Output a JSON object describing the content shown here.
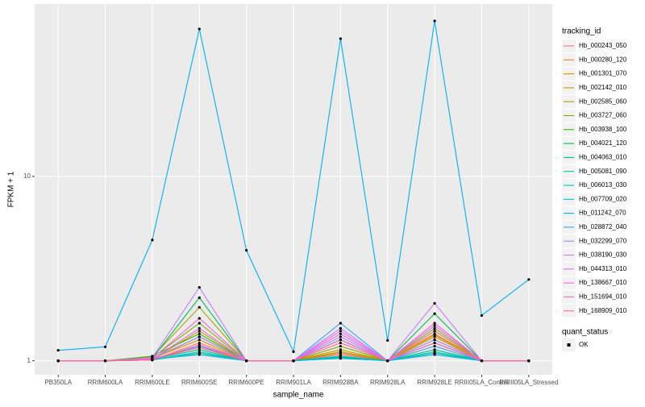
{
  "chart_data": {
    "type": "line",
    "x_label": "sample_name",
    "y_label": "FPKM + 1",
    "categories": [
      "PB350LA",
      "RRIM600LA",
      "RRIM600LE",
      "RRIM600SE",
      "RRIM600PE",
      "RRIM901LA",
      "RRIM928BA",
      "RRIM928LA",
      "RRIM928LE",
      "RRIII05LA_Control",
      "RRIII05LA_Stressed"
    ],
    "ylog": true,
    "ylim": [
      0.84,
      86
    ],
    "yticks": [
      1,
      10
    ],
    "grid": true,
    "legend_position": "right",
    "legend_title": "tracking_id",
    "shape_legend": {
      "title": "quant_status",
      "items": [
        "OK"
      ]
    },
    "series": [
      {
        "name": "Hb_000243_050",
        "color": "#F8766D",
        "values": [
          1,
          1,
          1.01,
          1.25,
          1,
          1,
          1.08,
          1,
          1.3,
          1,
          1
        ]
      },
      {
        "name": "Hb_000280_120",
        "color": "#EA8331",
        "values": [
          1,
          1,
          1.02,
          1.35,
          1,
          1,
          1.1,
          1,
          1.38,
          1,
          1
        ]
      },
      {
        "name": "Hb_001301_070",
        "color": "#D89000",
        "values": [
          1,
          1,
          1.03,
          1.3,
          1,
          1,
          1.15,
          1,
          1.4,
          1,
          1
        ]
      },
      {
        "name": "Hb_002142_010",
        "color": "#C09B00",
        "values": [
          1,
          1,
          1.02,
          1.45,
          1,
          1,
          1.12,
          1,
          1.35,
          1,
          1
        ]
      },
      {
        "name": "Hb_002585_060",
        "color": "#A3A500",
        "values": [
          1,
          1,
          1.05,
          1.95,
          1,
          1,
          1.12,
          1,
          1.45,
          1,
          1
        ]
      },
      {
        "name": "Hb_003727_060",
        "color": "#7CAE00",
        "values": [
          1,
          1,
          1.04,
          1.6,
          1,
          1,
          1.2,
          1,
          1.5,
          1,
          1
        ]
      },
      {
        "name": "Hb_003938_100",
        "color": "#39B600",
        "values": [
          1,
          1,
          1.06,
          1.4,
          1,
          1,
          1.05,
          1,
          1.25,
          1,
          1
        ]
      },
      {
        "name": "Hb_004021_120",
        "color": "#00BB4E",
        "values": [
          1,
          1,
          1.03,
          2.2,
          1,
          1,
          1.3,
          1,
          1.8,
          1,
          1
        ]
      },
      {
        "name": "Hb_004063_010",
        "color": "#00BF7D",
        "values": [
          1,
          1,
          1.02,
          1.15,
          1,
          1,
          1.05,
          1,
          1.15,
          1,
          1
        ]
      },
      {
        "name": "Hb_005081_090",
        "color": "#00C1A3",
        "values": [
          1,
          1,
          1.01,
          1.1,
          1,
          1,
          1.04,
          1,
          1.1,
          1,
          1
        ]
      },
      {
        "name": "Hb_006013_030",
        "color": "#00BFC4",
        "values": [
          1,
          1,
          1.01,
          1.12,
          1,
          1,
          1.06,
          1,
          1.12,
          1,
          1
        ]
      },
      {
        "name": "Hb_007709_020",
        "color": "#00BAE0",
        "values": [
          1,
          1,
          1.02,
          1.08,
          1,
          1,
          1.03,
          1,
          1.08,
          1,
          1
        ]
      },
      {
        "name": "Hb_011242_070",
        "color": "#00B0F6",
        "values": [
          1.14,
          1.19,
          4.52,
          63,
          3.97,
          1.12,
          55.8,
          1.29,
          69.6,
          1.76,
          2.76
        ]
      },
      {
        "name": "Hb_028872_040",
        "color": "#35A2FF",
        "values": [
          1,
          1,
          1.02,
          1.2,
          1,
          1,
          1.6,
          1,
          1.2,
          1,
          1
        ]
      },
      {
        "name": "Hb_032299_070",
        "color": "#9590FF",
        "values": [
          1,
          1,
          1.03,
          1.35,
          1,
          1,
          1.35,
          1,
          1.3,
          1,
          1
        ]
      },
      {
        "name": "Hb_038190_030",
        "color": "#C77CFF",
        "values": [
          1,
          1,
          1.04,
          2.5,
          1,
          1,
          1.5,
          1,
          2.05,
          1,
          1
        ]
      },
      {
        "name": "Hb_044313_010",
        "color": "#E76BF3",
        "values": [
          1,
          1,
          1.02,
          1.5,
          1,
          1,
          1.45,
          1,
          1.55,
          1,
          1
        ]
      },
      {
        "name": "Hb_138667_010",
        "color": "#FA62DB",
        "values": [
          1,
          1,
          1.03,
          1.7,
          1,
          1,
          1.4,
          1,
          1.6,
          1,
          1
        ]
      },
      {
        "name": "Hb_151694_010",
        "color": "#FF62BC",
        "values": [
          1,
          1,
          1.01,
          1.22,
          1,
          1,
          1.3,
          1,
          1.25,
          1,
          1
        ]
      },
      {
        "name": "Hb_168909_010",
        "color": "#FF6C91",
        "values": [
          1,
          1,
          1.02,
          1.18,
          1,
          1,
          1.25,
          1,
          1.45,
          1,
          1
        ]
      }
    ]
  }
}
